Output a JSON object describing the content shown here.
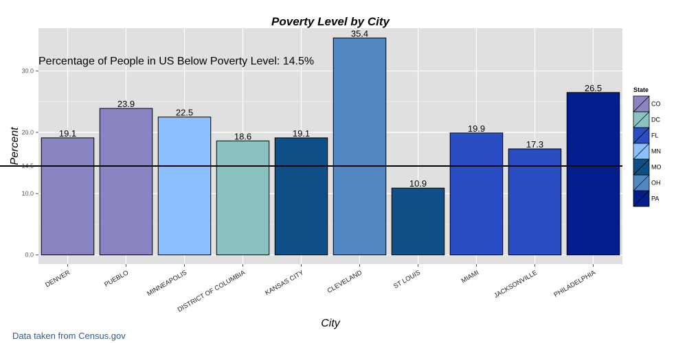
{
  "chart_data": {
    "type": "bar",
    "title": "Poverty Level by City",
    "xlabel": "City",
    "ylabel": "Percent",
    "categories": [
      "DENVER",
      "PUEBLO",
      "MINNEAPOLIS",
      "DISTRICT OF COLUMBIA",
      "KANSAS CITY",
      "CLEVELAND",
      "ST LOUIS",
      "MIAMI",
      "JACKSONVILLE",
      "PHILADELPHIA"
    ],
    "values": [
      19.1,
      23.9,
      22.5,
      18.6,
      19.1,
      35.4,
      10.9,
      19.9,
      17.3,
      26.5
    ],
    "value_labels": [
      "19.1",
      "23.9",
      "22.5",
      "18.6",
      "19.1",
      "35.4",
      "10.9",
      "19.9",
      "17.3",
      "26.5"
    ],
    "states": [
      "CO",
      "CO",
      "MN",
      "DC",
      "MO",
      "OH",
      "MO",
      "FL",
      "FL",
      "PA"
    ],
    "ylim": [
      -1.5,
      37
    ],
    "y_ticks": [
      0,
      10,
      14.5,
      20,
      30
    ],
    "y_tick_labels": [
      "0.0",
      "10.0",
      "14.5",
      "20.0",
      "30.0"
    ],
    "reference_line": {
      "value": 14.5,
      "color": "#000000"
    },
    "annotation": "Percentage of People in  US Below Poverty Level: 14.5%",
    "grid": true,
    "panel_background": "#e0e0e0",
    "grid_color": "#ffffff",
    "legend": {
      "title": "State",
      "position": "right",
      "entries": [
        {
          "label": "CO",
          "color": "#8885c2"
        },
        {
          "label": "DC",
          "color": "#8bc2c0"
        },
        {
          "label": "FL",
          "color": "#2a4dc4"
        },
        {
          "label": "MN",
          "color": "#8cbffe"
        },
        {
          "label": "MO",
          "color": "#0d4f86"
        },
        {
          "label": "OH",
          "color": "#5188c2"
        },
        {
          "label": "PA",
          "color": "#031e8c"
        }
      ]
    }
  },
  "source_note": "Data taken from Census.gov"
}
